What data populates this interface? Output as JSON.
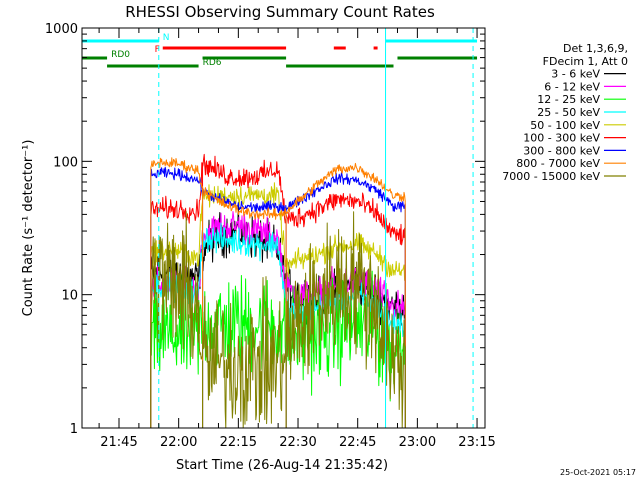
{
  "chart_data": {
    "type": "line",
    "title": "RHESSI Observing Summary Count Rates",
    "xlabel": "Start Time (26-Aug-14 21:35:42)",
    "ylabel": "Count Rate (s⁻¹ detector⁻¹)",
    "y_scale": "log",
    "ylim": [
      1,
      1000
    ],
    "xlim": [
      "21:35:42",
      "23:17:00"
    ],
    "x_ticks": [
      "21:45",
      "22:00",
      "22:15",
      "22:30",
      "22:45",
      "23:00",
      "23:15"
    ],
    "y_ticks": [
      "1",
      "10",
      "100",
      "1000"
    ],
    "grid": false,
    "legend_position": "right",
    "legend_header": [
      "Det 1,3,6,9,",
      "FDecim 1, Att 0"
    ],
    "footer_date": "25-Oct-2021 05:17",
    "data_gaps": [
      [
        "21:35:42",
        "21:53:00"
      ],
      [
        "22:59:00",
        "23:17:00"
      ]
    ],
    "breaks": [
      "22:06",
      "22:27"
    ],
    "flags": [
      {
        "label": "N",
        "color": "#00ffff",
        "intervals": [
          [
            "21:35:42",
            "21:55:00"
          ],
          [
            "22:52:00",
            "23:15:00"
          ]
        ]
      },
      {
        "label": "F",
        "color": "#ff0000",
        "intervals": [
          [
            "21:56:00",
            "22:27:00"
          ],
          [
            "22:39:00",
            "22:42:00"
          ],
          [
            "22:49:00",
            "22:50:00"
          ]
        ]
      },
      {
        "label": "RD0",
        "color": "#008000",
        "intervals": [
          [
            "21:35:42",
            "21:42:00"
          ],
          [
            "22:06:00",
            "22:27:00"
          ],
          [
            "22:55:00",
            "23:15:00"
          ]
        ]
      },
      {
        "label": "RD6",
        "color": "#008000",
        "intervals": [
          [
            "21:42:00",
            "22:05:00"
          ],
          [
            "22:27:00",
            "22:54:00"
          ]
        ]
      }
    ],
    "vlines": [
      {
        "time": "21:55:00",
        "color": "#00ffff",
        "style": "dashed"
      },
      {
        "time": "22:52:00",
        "color": "#00ffff",
        "style": "solid"
      },
      {
        "time": "23:14:00",
        "color": "#00ffff",
        "style": "dashed"
      }
    ],
    "series": [
      {
        "name": "3 - 6 keV",
        "color": "#000000",
        "noise": 0.08,
        "points": [
          [
            "21:53",
            14
          ],
          [
            "21:55",
            15
          ],
          [
            "22:00",
            14
          ],
          [
            "22:05",
            13
          ],
          [
            "22:06",
            22
          ],
          [
            "22:10",
            28
          ],
          [
            "22:15",
            30
          ],
          [
            "22:20",
            26
          ],
          [
            "22:25",
            22
          ],
          [
            "22:27",
            12
          ],
          [
            "22:30",
            10
          ],
          [
            "22:35",
            9
          ],
          [
            "22:40",
            11
          ],
          [
            "22:45",
            12
          ],
          [
            "22:50",
            10
          ],
          [
            "22:54",
            8
          ],
          [
            "22:57",
            8
          ]
        ]
      },
      {
        "name": "6 - 12 keV",
        "color": "#ff00ff",
        "noise": 0.06,
        "points": [
          [
            "21:53",
            11
          ],
          [
            "21:55",
            12
          ],
          [
            "22:00",
            12
          ],
          [
            "22:05",
            11
          ],
          [
            "22:06",
            28
          ],
          [
            "22:10",
            32
          ],
          [
            "22:15",
            33
          ],
          [
            "22:20",
            30
          ],
          [
            "22:25",
            26
          ],
          [
            "22:27",
            11
          ],
          [
            "22:30",
            10
          ],
          [
            "22:35",
            10
          ],
          [
            "22:40",
            12
          ],
          [
            "22:45",
            13
          ],
          [
            "22:50",
            11
          ],
          [
            "22:54",
            8
          ],
          [
            "22:57",
            8
          ]
        ]
      },
      {
        "name": "12 - 25 keV",
        "color": "#00ff00",
        "noise": 0.18,
        "points": [
          [
            "21:53",
            5
          ],
          [
            "21:55",
            5
          ],
          [
            "22:00",
            5
          ],
          [
            "22:05",
            5
          ],
          [
            "22:06",
            6
          ],
          [
            "22:10",
            6
          ],
          [
            "22:15",
            6
          ],
          [
            "22:20",
            6
          ],
          [
            "22:25",
            6
          ],
          [
            "22:27",
            4.5
          ],
          [
            "22:30",
            5
          ],
          [
            "22:35",
            5
          ],
          [
            "22:40",
            5.5
          ],
          [
            "22:45",
            6
          ],
          [
            "22:50",
            5
          ],
          [
            "22:54",
            4
          ],
          [
            "22:57",
            4
          ]
        ]
      },
      {
        "name": "25 - 50 keV",
        "color": "#00ffff",
        "noise": 0.05,
        "points": [
          [
            "21:53",
            11
          ],
          [
            "21:55",
            12
          ],
          [
            "22:00",
            11
          ],
          [
            "22:05",
            10
          ],
          [
            "22:06",
            27
          ],
          [
            "22:10",
            26
          ],
          [
            "22:15",
            25
          ],
          [
            "22:20",
            24
          ],
          [
            "22:25",
            24
          ],
          [
            "22:27",
            8
          ],
          [
            "22:30",
            7
          ],
          [
            "22:35",
            8
          ],
          [
            "22:40",
            9
          ],
          [
            "22:45",
            10
          ],
          [
            "22:50",
            8
          ],
          [
            "22:54",
            6
          ],
          [
            "22:57",
            6
          ]
        ]
      },
      {
        "name": "50 - 100 keV",
        "color": "#cccc00",
        "noise": 0.04,
        "points": [
          [
            "21:53",
            20
          ],
          [
            "21:55",
            22
          ],
          [
            "22:00",
            21
          ],
          [
            "22:05",
            19
          ],
          [
            "22:06",
            54
          ],
          [
            "22:10",
            55
          ],
          [
            "22:15",
            55
          ],
          [
            "22:20",
            56
          ],
          [
            "22:25",
            55
          ],
          [
            "22:27",
            16
          ],
          [
            "22:30",
            18
          ],
          [
            "22:35",
            20
          ],
          [
            "22:40",
            23
          ],
          [
            "22:45",
            24
          ],
          [
            "22:50",
            20
          ],
          [
            "22:54",
            15
          ],
          [
            "22:57",
            15
          ]
        ]
      },
      {
        "name": "100 - 300 keV",
        "color": "#ff0000",
        "noise": 0.04,
        "points": [
          [
            "21:53",
            42
          ],
          [
            "21:55",
            44
          ],
          [
            "22:00",
            44
          ],
          [
            "22:05",
            42
          ],
          [
            "22:06",
            98
          ],
          [
            "22:08",
            90
          ],
          [
            "22:12",
            78
          ],
          [
            "22:15",
            75
          ],
          [
            "22:20",
            78
          ],
          [
            "22:25",
            88
          ],
          [
            "22:27",
            36
          ],
          [
            "22:30",
            38
          ],
          [
            "22:35",
            44
          ],
          [
            "22:40",
            52
          ],
          [
            "22:45",
            50
          ],
          [
            "22:50",
            40
          ],
          [
            "22:54",
            28
          ],
          [
            "22:57",
            28
          ]
        ]
      },
      {
        "name": "300 - 800 keV",
        "color": "#0000ff",
        "noise": 0.02,
        "points": [
          [
            "21:53",
            77
          ],
          [
            "21:55",
            82
          ],
          [
            "22:00",
            80
          ],
          [
            "22:05",
            72
          ],
          [
            "22:06",
            60
          ],
          [
            "22:10",
            52
          ],
          [
            "22:15",
            46
          ],
          [
            "22:20",
            45
          ],
          [
            "22:25",
            46
          ],
          [
            "22:27",
            45
          ],
          [
            "22:30",
            50
          ],
          [
            "22:35",
            62
          ],
          [
            "22:40",
            75
          ],
          [
            "22:45",
            72
          ],
          [
            "22:50",
            60
          ],
          [
            "22:54",
            46
          ],
          [
            "22:57",
            46
          ]
        ]
      },
      {
        "name": "800 - 7000 keV",
        "color": "#ff8000",
        "noise": 0.02,
        "points": [
          [
            "21:53",
            92
          ],
          [
            "21:55",
            98
          ],
          [
            "22:00",
            96
          ],
          [
            "22:05",
            85
          ],
          [
            "22:06",
            62
          ],
          [
            "22:10",
            50
          ],
          [
            "22:15",
            43
          ],
          [
            "22:20",
            40
          ],
          [
            "22:25",
            40
          ],
          [
            "22:27",
            42
          ],
          [
            "22:30",
            50
          ],
          [
            "22:35",
            68
          ],
          [
            "22:40",
            88
          ],
          [
            "22:45",
            90
          ],
          [
            "22:50",
            72
          ],
          [
            "22:54",
            55
          ],
          [
            "22:57",
            55
          ]
        ]
      },
      {
        "name": "7000 - 15000 keV",
        "color": "#808000",
        "noise": 0.25,
        "points": [
          [
            "21:53",
            13
          ],
          [
            "21:55",
            13
          ],
          [
            "22:00",
            11
          ],
          [
            "22:05",
            8
          ],
          [
            "22:06",
            3.2
          ],
          [
            "22:10",
            3
          ],
          [
            "22:15",
            3
          ],
          [
            "22:20",
            3
          ],
          [
            "22:25",
            3
          ],
          [
            "22:27",
            4
          ],
          [
            "22:30",
            6
          ],
          [
            "22:35",
            9
          ],
          [
            "22:40",
            12
          ],
          [
            "22:45",
            12
          ],
          [
            "22:50",
            8
          ],
          [
            "22:54",
            3
          ],
          [
            "22:57",
            3
          ]
        ]
      }
    ]
  }
}
